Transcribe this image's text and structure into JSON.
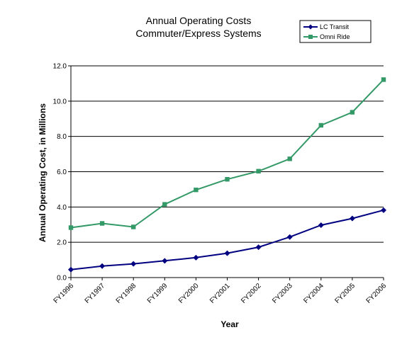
{
  "chart_data": {
    "type": "line",
    "title_lines": [
      "Annual Operating Costs",
      "Commuter/Express Systems"
    ],
    "xlabel": "Year",
    "ylabel": "Annual Operating Cost, in Millions",
    "categories": [
      "FY1996",
      "FY1997",
      "FY1998",
      "FY1999",
      "FY2000",
      "FY2001",
      "FY2002",
      "FY2003",
      "FY2004",
      "FY2005",
      "FY2006"
    ],
    "ylim": [
      0,
      12
    ],
    "yticks": [
      "0.0",
      "2.0",
      "4.0",
      "6.0",
      "8.0",
      "10.0",
      "12.0"
    ],
    "grid": true,
    "legend_position": "top-right",
    "series": [
      {
        "name": "LC Transit",
        "color": "#000080",
        "marker": "diamond",
        "values": [
          0.45,
          0.65,
          0.78,
          0.95,
          1.13,
          1.38,
          1.72,
          2.3,
          2.97,
          3.35,
          3.82
        ]
      },
      {
        "name": "Omni Ride",
        "color": "#339966",
        "marker": "square",
        "values": [
          2.83,
          3.07,
          2.87,
          4.15,
          4.97,
          5.57,
          6.03,
          6.73,
          8.63,
          9.37,
          11.22
        ]
      }
    ]
  }
}
